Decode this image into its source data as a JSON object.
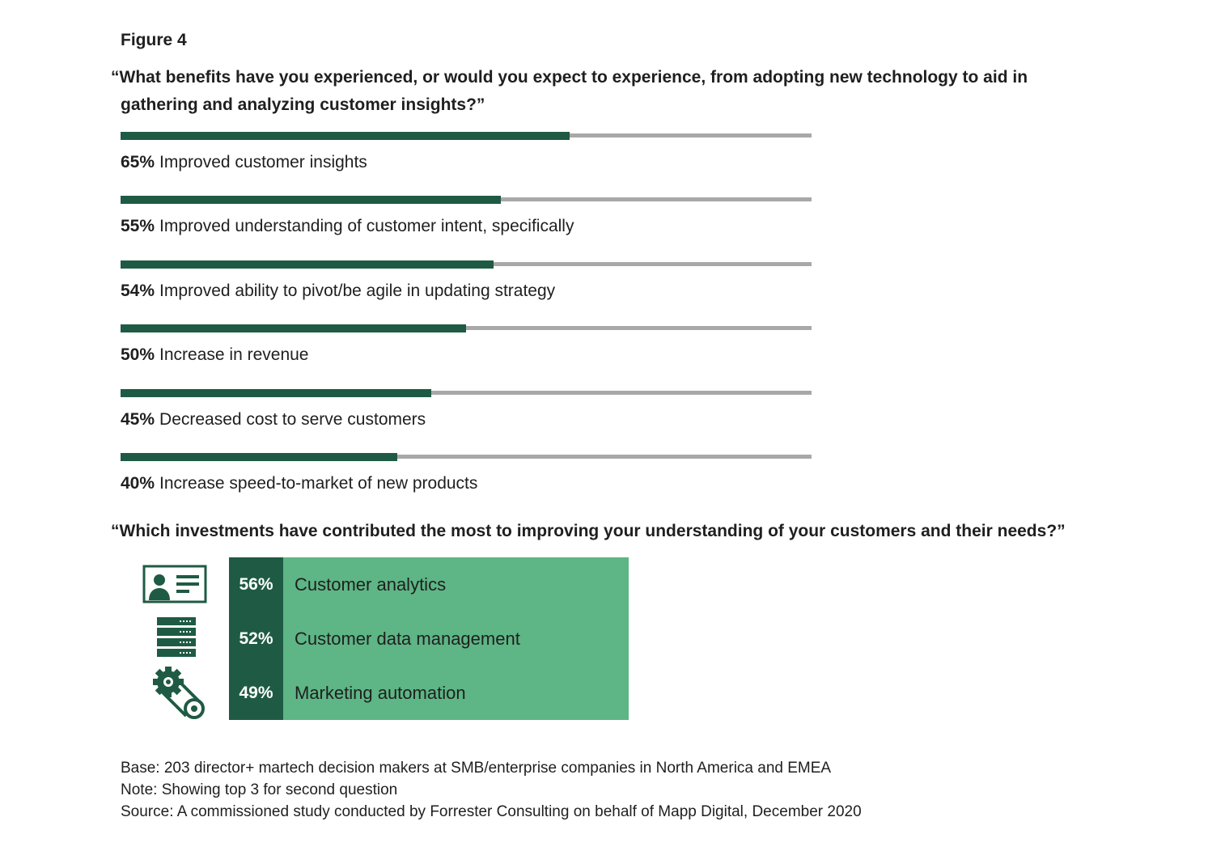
{
  "figure_label": "Figure 4",
  "question1": {
    "line1": "“What benefits have you experienced, or would you expect to experience, from adopting new technology to aid in",
    "line2": "gathering and analyzing customer insights?”"
  },
  "question2": "“Which investments have contributed the most to improving your understanding of your customers and their needs?”",
  "colors": {
    "dark_green": "#1f5b44",
    "light_green": "#5eb585",
    "track_gray": "#a8a8a8"
  },
  "chart_data": [
    {
      "type": "bar",
      "orientation": "horizontal",
      "title": "“What benefits have you experienced, or would you expect to experience, from adopting new technology to aid in gathering and analyzing customer insights?”",
      "xlim": [
        0,
        100
      ],
      "categories": [
        "Improved customer insights",
        "Improved understanding of customer intent, specifically",
        "Improved ability to pivot/be agile in updating strategy",
        "Increase in revenue",
        "Decreased cost to serve customers",
        "Increase speed-to-market of new products"
      ],
      "values": [
        65,
        55,
        54,
        50,
        45,
        40
      ],
      "value_labels": [
        "65%",
        "55%",
        "54%",
        "50%",
        "45%",
        "40%"
      ]
    },
    {
      "type": "table",
      "title": "“Which investments have contributed the most to improving your understanding of your customers and their needs?”",
      "categories": [
        "Customer analytics",
        "Customer data management",
        "Marketing automation"
      ],
      "values": [
        56,
        52,
        49
      ],
      "value_labels": [
        "56%",
        "52%",
        "49%"
      ],
      "icons": [
        "customer-profile-icon",
        "server-stack-icon",
        "gear-conveyor-icon"
      ]
    }
  ],
  "footnotes": {
    "base": "Base: 203 director+ martech decision makers at SMB/enterprise companies in North America and EMEA",
    "note": "Note: Showing top 3 for second question",
    "source": "Source: A commissioned study conducted by Forrester Consulting on behalf of Mapp Digital, December 2020"
  }
}
